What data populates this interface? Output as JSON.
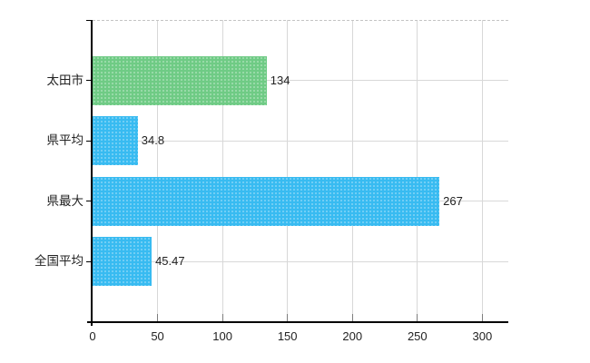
{
  "chart_data": {
    "type": "bar",
    "orientation": "horizontal",
    "title": "",
    "categories": [
      "太田市",
      "県平均",
      "県最大",
      "全国平均"
    ],
    "values": [
      134,
      34.8,
      267,
      45.47
    ],
    "value_labels": [
      "134",
      "34.8",
      "267",
      "45.47"
    ],
    "bar_colors": [
      "#6FCB85",
      "#38BBF1",
      "#38BBF1",
      "#38BBF1"
    ],
    "x_tick_values": [
      0,
      50,
      100,
      150,
      200,
      250,
      300
    ],
    "x_tick_labels": [
      "0",
      "50",
      "100",
      "150",
      "200",
      "250",
      "300"
    ],
    "xlim": [
      0,
      320
    ],
    "grid": true,
    "legend": false,
    "colors": {
      "grid": "#d8d8d8",
      "axis": "#000000",
      "text": "#222222",
      "top_border": "#c4c4c4",
      "background": "#ffffff",
      "highlight_bar": "#6FCB85",
      "default_bar": "#38BBF1"
    }
  }
}
